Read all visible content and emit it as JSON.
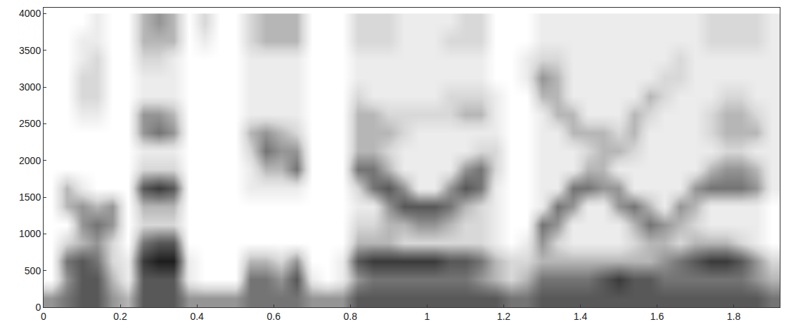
{
  "chart_data": {
    "type": "heatmap",
    "x": [
      0.02,
      0.06,
      0.1,
      0.14,
      0.18,
      0.22,
      0.26,
      0.3,
      0.34,
      0.38,
      0.42,
      0.46,
      0.5,
      0.54,
      0.58,
      0.62,
      0.66,
      0.7,
      0.74,
      0.78,
      0.82,
      0.86,
      0.9,
      0.94,
      0.98,
      1.02,
      1.06,
      1.1,
      1.14,
      1.18,
      1.22,
      1.26,
      1.3,
      1.34,
      1.38,
      1.42,
      1.46,
      1.5,
      1.54,
      1.58,
      1.62,
      1.66,
      1.7,
      1.74,
      1.78,
      1.82,
      1.86,
      1.9
    ],
    "y": [
      125,
      375,
      625,
      875,
      1125,
      1375,
      1625,
      1875,
      2125,
      2375,
      2625,
      2875,
      3125,
      3375,
      3625,
      3875
    ],
    "z": [
      [
        4,
        5,
        6,
        6,
        4,
        3,
        6,
        6,
        6,
        4,
        4,
        4,
        4,
        5,
        5,
        5,
        5,
        4,
        4,
        4,
        6,
        6,
        6,
        6,
        6,
        6,
        6,
        6,
        6,
        6,
        5,
        5,
        6,
        6,
        6,
        6,
        6,
        6,
        6,
        6,
        6,
        6,
        6,
        6,
        6,
        6,
        6,
        5
      ],
      [
        0,
        4,
        6,
        6,
        3,
        1,
        6,
        6,
        6,
        1,
        0,
        0,
        0,
        5,
        5,
        4,
        6,
        1,
        0,
        1,
        4,
        5,
        5,
        5,
        5,
        5,
        5,
        5,
        4,
        3,
        2,
        3,
        5,
        5,
        5,
        5,
        6,
        7,
        6,
        6,
        5,
        5,
        5,
        5,
        5,
        5,
        4,
        3
      ],
      [
        0,
        5,
        6,
        5,
        2,
        1,
        7,
        8,
        8,
        1,
        0,
        0,
        0,
        3,
        3,
        2,
        4,
        0,
        0,
        1,
        6,
        7,
        7,
        7,
        7,
        7,
        6,
        6,
        5,
        3,
        2,
        2,
        3,
        3,
        3,
        3,
        3,
        3,
        3,
        3,
        4,
        5,
        6,
        7,
        7,
        6,
        4,
        2
      ],
      [
        0,
        2,
        3,
        4,
        2,
        0,
        5,
        6,
        6,
        0,
        0,
        0,
        0,
        0,
        0,
        0,
        0,
        0,
        0,
        0,
        3,
        3,
        3,
        2,
        2,
        2,
        2,
        2,
        2,
        1,
        0,
        1,
        4,
        2,
        1,
        1,
        1,
        1,
        2,
        3,
        3,
        2,
        3,
        3,
        3,
        2,
        1,
        0
      ],
      [
        0,
        0,
        4,
        5,
        4,
        0,
        2,
        2,
        2,
        0,
        0,
        0,
        0,
        0,
        0,
        0,
        0,
        0,
        0,
        0,
        2,
        2,
        3,
        3,
        4,
        4,
        3,
        2,
        2,
        1,
        0,
        0,
        5,
        4,
        1,
        1,
        1,
        1,
        3,
        5,
        4,
        3,
        2,
        1,
        1,
        1,
        1,
        0
      ],
      [
        0,
        3,
        4,
        3,
        4,
        0,
        3,
        3,
        3,
        0,
        0,
        0,
        0,
        0,
        0,
        0,
        0,
        0,
        0,
        0,
        1,
        1,
        4,
        6,
        6,
        6,
        5,
        3,
        2,
        1,
        0,
        0,
        1,
        5,
        4,
        1,
        1,
        4,
        5,
        3,
        1,
        4,
        3,
        1,
        1,
        1,
        1,
        0
      ],
      [
        0,
        3,
        1,
        0,
        0,
        0,
        6,
        7,
        6,
        0,
        0,
        0,
        0,
        1,
        1,
        1,
        1,
        0,
        0,
        0,
        2,
        5,
        6,
        4,
        1,
        1,
        4,
        6,
        5,
        1,
        0,
        0,
        1,
        1,
        5,
        5,
        4,
        4,
        1,
        1,
        1,
        1,
        4,
        5,
        5,
        5,
        4,
        1
      ],
      [
        0,
        0,
        0,
        0,
        0,
        0,
        2,
        2,
        2,
        0,
        0,
        0,
        0,
        1,
        3,
        3,
        5,
        0,
        0,
        0,
        5,
        5,
        3,
        1,
        1,
        1,
        1,
        4,
        5,
        2,
        0,
        0,
        1,
        1,
        1,
        3,
        3,
        1,
        1,
        1,
        1,
        1,
        1,
        3,
        4,
        4,
        3,
        1
      ],
      [
        0,
        0,
        0,
        0,
        0,
        0,
        1,
        1,
        1,
        0,
        0,
        0,
        0,
        2,
        5,
        4,
        4,
        0,
        0,
        0,
        3,
        3,
        2,
        1,
        1,
        1,
        1,
        1,
        2,
        2,
        0,
        0,
        1,
        1,
        1,
        2,
        3,
        3,
        2,
        1,
        1,
        1,
        1,
        1,
        2,
        2,
        1,
        1
      ],
      [
        0,
        0,
        0,
        0,
        0,
        0,
        4,
        5,
        4,
        0,
        0,
        0,
        0,
        3,
        4,
        3,
        2,
        0,
        0,
        0,
        3,
        3,
        3,
        2,
        1,
        1,
        1,
        1,
        1,
        1,
        0,
        0,
        1,
        1,
        3,
        3,
        3,
        2,
        3,
        1,
        1,
        1,
        1,
        2,
        3,
        3,
        3,
        1
      ],
      [
        0,
        0,
        1,
        1,
        0,
        0,
        4,
        4,
        3,
        0,
        0,
        0,
        0,
        1,
        1,
        1,
        1,
        0,
        0,
        0,
        3,
        3,
        2,
        2,
        2,
        2,
        2,
        3,
        3,
        1,
        0,
        0,
        1,
        3,
        3,
        1,
        1,
        1,
        3,
        2,
        1,
        1,
        1,
        2,
        3,
        3,
        2,
        1
      ],
      [
        0,
        0,
        2,
        2,
        0,
        0,
        1,
        1,
        1,
        0,
        0,
        0,
        0,
        1,
        1,
        1,
        1,
        0,
        0,
        0,
        2,
        1,
        1,
        1,
        1,
        1,
        2,
        2,
        2,
        1,
        0,
        0,
        3,
        3,
        1,
        1,
        1,
        1,
        1,
        3,
        2,
        1,
        1,
        1,
        2,
        2,
        1,
        1
      ],
      [
        0,
        0,
        2,
        2,
        0,
        0,
        1,
        1,
        1,
        0,
        0,
        0,
        0,
        1,
        1,
        1,
        1,
        0,
        0,
        0,
        1,
        1,
        1,
        1,
        1,
        1,
        1,
        1,
        1,
        0,
        0,
        1,
        4,
        3,
        1,
        1,
        1,
        1,
        1,
        1,
        2,
        2,
        1,
        1,
        1,
        1,
        1,
        1
      ],
      [
        0,
        0,
        1,
        2,
        0,
        0,
        2,
        2,
        1,
        0,
        0,
        0,
        0,
        1,
        1,
        1,
        1,
        0,
        0,
        0,
        1,
        1,
        1,
        1,
        1,
        1,
        1,
        1,
        1,
        0,
        0,
        1,
        2,
        2,
        1,
        1,
        1,
        1,
        1,
        1,
        1,
        2,
        1,
        1,
        1,
        1,
        1,
        1
      ],
      [
        0,
        0,
        1,
        1,
        0,
        0,
        3,
        3,
        3,
        0,
        1,
        0,
        0,
        2,
        3,
        3,
        3,
        0,
        0,
        0,
        2,
        2,
        2,
        1,
        1,
        1,
        2,
        2,
        2,
        0,
        0,
        0,
        1,
        1,
        1,
        1,
        1,
        1,
        1,
        1,
        1,
        1,
        1,
        2,
        2,
        2,
        2,
        1
      ],
      [
        0,
        0,
        0,
        1,
        0,
        0,
        3,
        4,
        3,
        0,
        2,
        0,
        0,
        2,
        3,
        3,
        3,
        0,
        0,
        0,
        2,
        2,
        2,
        1,
        1,
        1,
        1,
        2,
        2,
        0,
        0,
        0,
        1,
        1,
        1,
        1,
        1,
        1,
        1,
        1,
        1,
        1,
        1,
        2,
        2,
        2,
        2,
        1
      ]
    ],
    "xlim": [
      0,
      1.92
    ],
    "ylim": [
      0,
      4080
    ],
    "xticks": [
      0,
      0.2,
      0.4,
      0.6,
      0.8,
      1,
      1.2,
      1.4,
      1.6,
      1.8
    ],
    "yticks": [
      0,
      500,
      1000,
      1500,
      2000,
      2500,
      3000,
      3500,
      4000
    ],
    "grid": false
  }
}
